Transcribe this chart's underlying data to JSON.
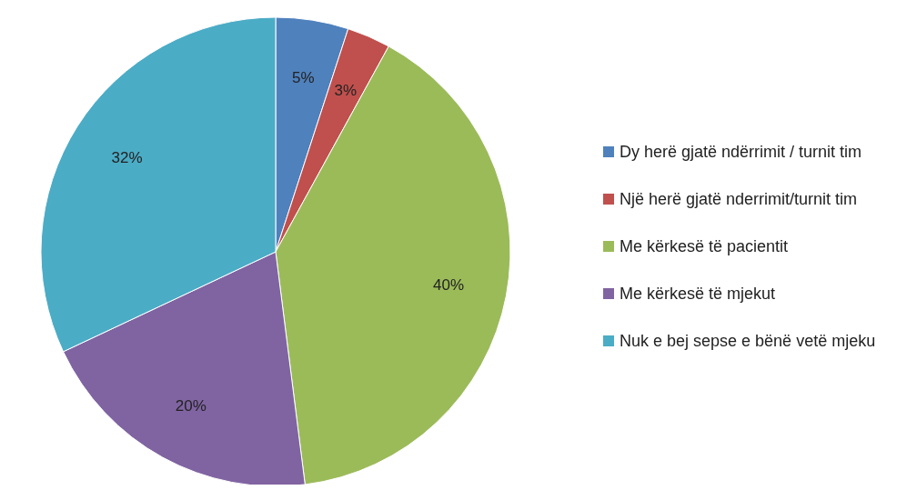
{
  "chart_data": {
    "type": "pie",
    "categories": [
      "Dy herë gjatë ndërrimit / turnit tim",
      "Një herë gjatë nderrimit/turnit tim",
      "Me kërkesë të pacientit",
      "Me kërkesë të mjekut",
      "Nuk e bej sepse e bënë vetë mjeku"
    ],
    "values": [
      5,
      3,
      40,
      20,
      32
    ],
    "value_labels": [
      "5%",
      "3%",
      "40%",
      "20%",
      "32%"
    ],
    "colors": [
      "#4f81bd",
      "#c0504d",
      "#9bbb59",
      "#8064a2",
      "#4bacc6"
    ],
    "legend": "right"
  }
}
